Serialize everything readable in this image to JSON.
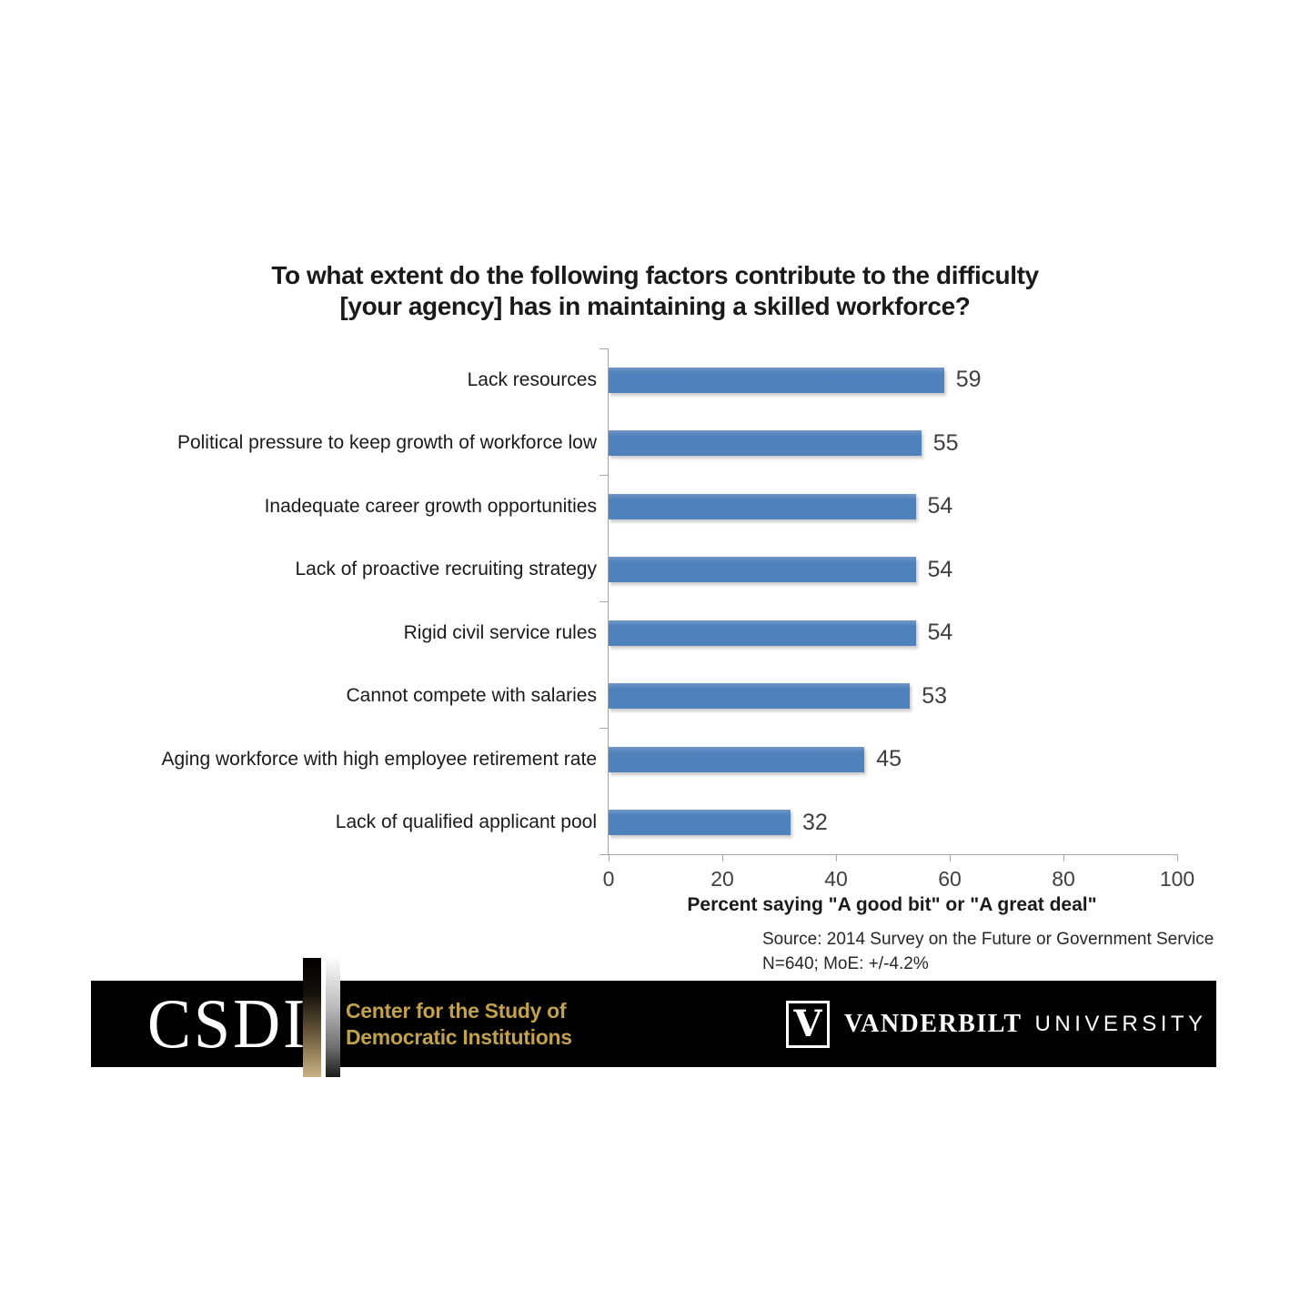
{
  "chart_data": {
    "type": "bar",
    "orientation": "horizontal",
    "title_line1": "To what extent do the following factors contribute to the difficulty",
    "title_line2": "[your agency] has in maintaining a skilled workforce?",
    "categories": [
      "Lack resources",
      "Political pressure to keep growth of workforce low",
      "Inadequate career growth opportunities",
      "Lack of proactive recruiting strategy",
      "Rigid civil service rules",
      "Cannot compete with salaries",
      "Aging workforce with high employee retirement rate",
      "Lack of qualified applicant pool"
    ],
    "values": [
      59,
      55,
      54,
      54,
      54,
      53,
      45,
      32
    ],
    "xlabel": "Percent saying \"A good bit\" or \"A great deal\"",
    "xticks": [
      0,
      20,
      40,
      60,
      80,
      100
    ],
    "xlim": [
      0,
      100
    ],
    "grid": false,
    "legend": false,
    "bar_color": "#4F81BD",
    "axis_color": "#A6A6A6"
  },
  "source": {
    "line1": "Source: 2014 Survey on the Future or Government Service",
    "line2": "N=640; MoE: +/-4.2%"
  },
  "footer": {
    "csdi_acronym": "CSDI",
    "csdi_name_line1": "Center for the Study of",
    "csdi_name_line2": "Democratic Institutions",
    "vanderbilt_monogram": "V",
    "vanderbilt_name": "VANDERBILT",
    "vanderbilt_suffix": "UNIVERSITY",
    "colors": {
      "banner_bg": "#000000",
      "gold_text": "#C1A14E",
      "bar_blue": "#4F81BD"
    }
  }
}
